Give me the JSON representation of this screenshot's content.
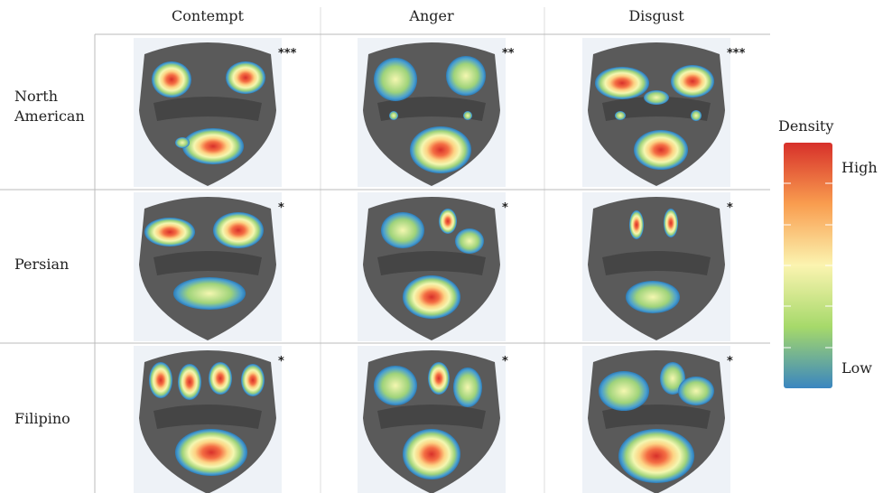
{
  "columns": [
    "Contempt",
    "Anger",
    "Disgust"
  ],
  "rows": [
    {
      "label": "North American",
      "significance": [
        "***",
        "**",
        "***"
      ]
    },
    {
      "label": "Persian",
      "significance": [
        "*",
        "*",
        "*"
      ]
    },
    {
      "label": "Filipino",
      "significance": [
        "*",
        "*",
        "*"
      ]
    }
  ],
  "legend": {
    "title": "Density",
    "high": "High",
    "low": "Low"
  }
}
